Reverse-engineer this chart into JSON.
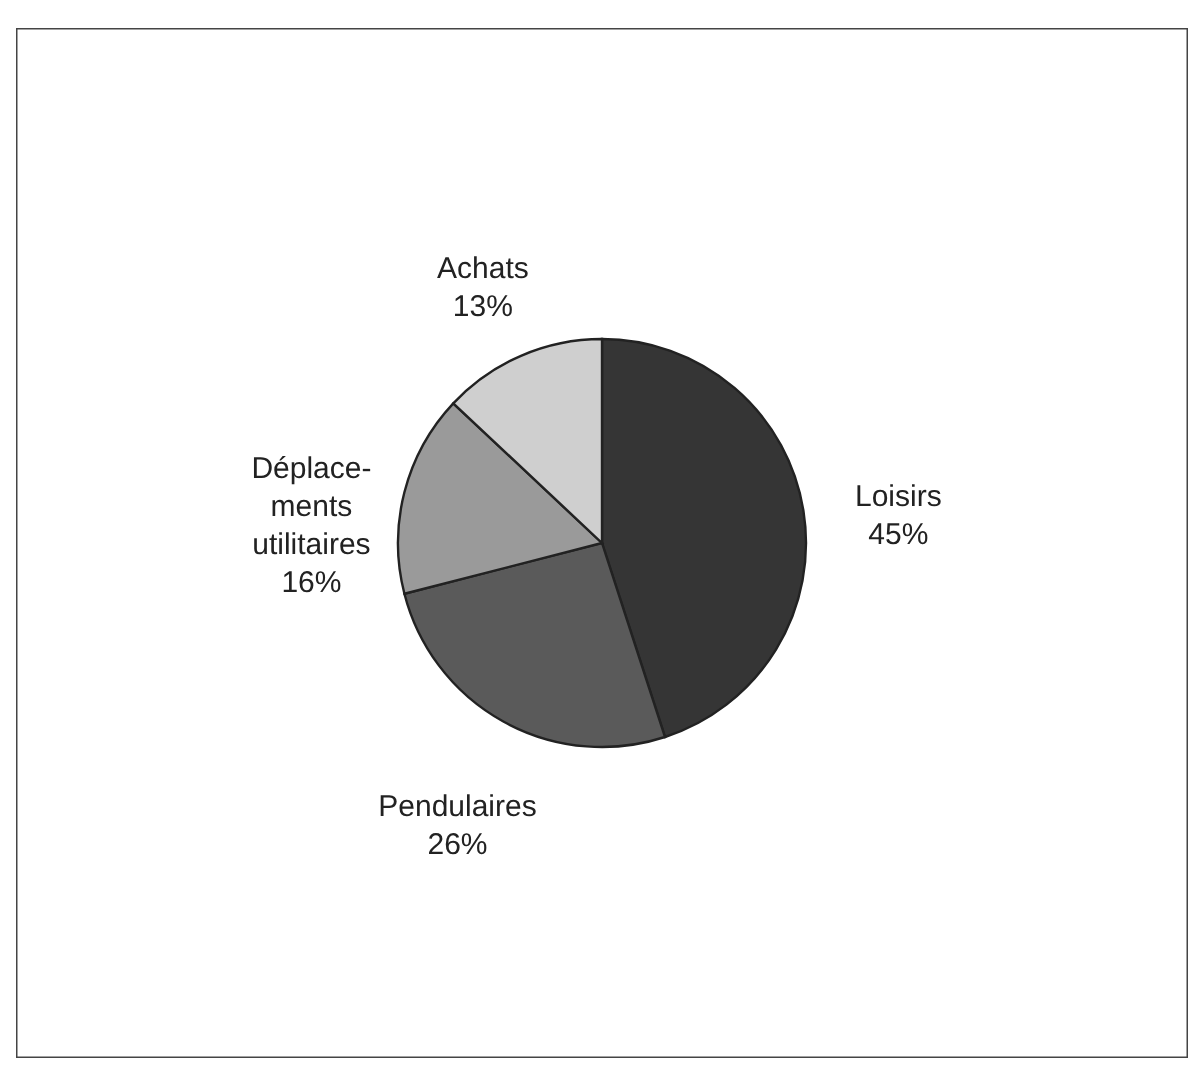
{
  "chart_data": {
    "type": "pie",
    "categories": [
      "Loisirs",
      "Pendulaires",
      "Déplace-\nments\nutilitaires",
      "Achats"
    ],
    "values": [
      45,
      26,
      16,
      13
    ],
    "value_labels": [
      "45%",
      "26%",
      "16%",
      "13%"
    ],
    "colors": [
      "#353535",
      "#5a5a5a",
      "#9a9a9a",
      "#cfcfcf"
    ]
  }
}
